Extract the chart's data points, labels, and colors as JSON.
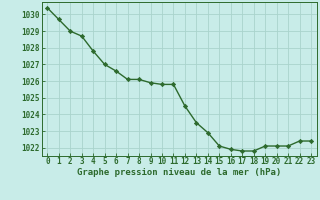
{
  "x": [
    0,
    1,
    2,
    3,
    4,
    5,
    6,
    7,
    8,
    9,
    10,
    11,
    12,
    13,
    14,
    15,
    16,
    17,
    18,
    19,
    20,
    21,
    22,
    23
  ],
  "y": [
    1030.4,
    1029.7,
    1029.0,
    1028.7,
    1027.8,
    1027.0,
    1026.6,
    1026.1,
    1026.1,
    1025.9,
    1025.8,
    1025.8,
    1024.5,
    1023.5,
    1022.9,
    1022.1,
    1021.9,
    1021.8,
    1021.8,
    1022.1,
    1022.1,
    1022.1,
    1022.4,
    1022.4
  ],
  "line_color": "#2d6a2d",
  "marker": "D",
  "marker_size": 2.2,
  "bg_color": "#c8ece8",
  "grid_color": "#aad4cc",
  "title": "Graphe pression niveau de la mer (hPa)",
  "title_color": "#2d6a2d",
  "ylim": [
    1021.5,
    1030.75
  ],
  "yticks": [
    1022,
    1023,
    1024,
    1025,
    1026,
    1027,
    1028,
    1029,
    1030
  ],
  "xticks": [
    0,
    1,
    2,
    3,
    4,
    5,
    6,
    7,
    8,
    9,
    10,
    11,
    12,
    13,
    14,
    15,
    16,
    17,
    18,
    19,
    20,
    21,
    22,
    23
  ],
  "tick_label_color": "#2d6a2d",
  "tick_label_size": 5.5,
  "title_size": 6.5,
  "spine_color": "#2d6a2d",
  "line_width": 1.0
}
